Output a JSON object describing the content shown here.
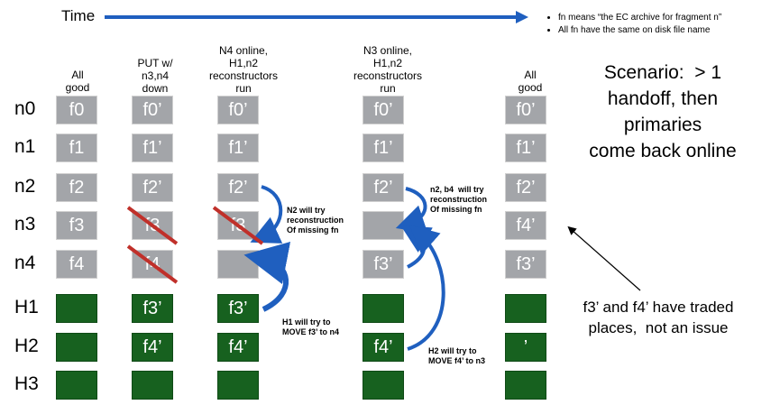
{
  "time_label": "Time",
  "legend": [
    "fn means “the EC archive for fragment n”",
    "All fn have the same on disk file name"
  ],
  "columns": [
    {
      "heading": "All\ngood",
      "cells": [
        "f0",
        "f1",
        "f2",
        "f3",
        "f4",
        "",
        "",
        ""
      ],
      "crossed": []
    },
    {
      "heading": "PUT w/\nn3,n4\ndown",
      "cells": [
        "f0’",
        "f1’",
        "f2’",
        "f3",
        "f4",
        "f3’",
        "f4’",
        ""
      ],
      "crossed": [
        3,
        4
      ]
    },
    {
      "heading": "N4 online,\nH1,n2\nreconstructors\nrun",
      "cells": [
        "f0’",
        "f1’",
        "f2’",
        "f3",
        "",
        "f3’",
        "f4’",
        ""
      ],
      "crossed": [
        3
      ]
    },
    {
      "heading": "N3 online,\nH1,n2\nreconstructors\nrun",
      "cells": [
        "f0’",
        "f1’",
        "f2’",
        "",
        "f3’",
        "",
        "f4’",
        ""
      ],
      "crossed": []
    },
    {
      "heading": "All\ngood",
      "cells": [
        "f0’",
        "f1’",
        "f2’",
        "f4’",
        "f3’",
        "",
        "’",
        ""
      ],
      "crossed": []
    }
  ],
  "rows": [
    "n0",
    "n1",
    "n2",
    "n3",
    "n4",
    "H1",
    "H2",
    "H3"
  ],
  "scenario": "Scenario:  > 1\nhandoff, then\nprimaries\ncome back online",
  "notes": {
    "n2_col3": "N2 will try\nreconstruction\nOf missing fn",
    "h1_col3": "H1 will try to\nMOVE f3’ to n4",
    "n2_col4": "n2, b4  will try\nreconstruction\nOf missing fn",
    "h2_col4": "H2 will try to\nMOVE f4’ to n3"
  },
  "traded_note": "f3’ and f4’ have traded\nplaces,  not an issue",
  "colors": {
    "arrow_blue": "#1f5fbf",
    "cross_red": "#c0302a",
    "green": "#17611f",
    "gray": "#a3a5a9"
  }
}
